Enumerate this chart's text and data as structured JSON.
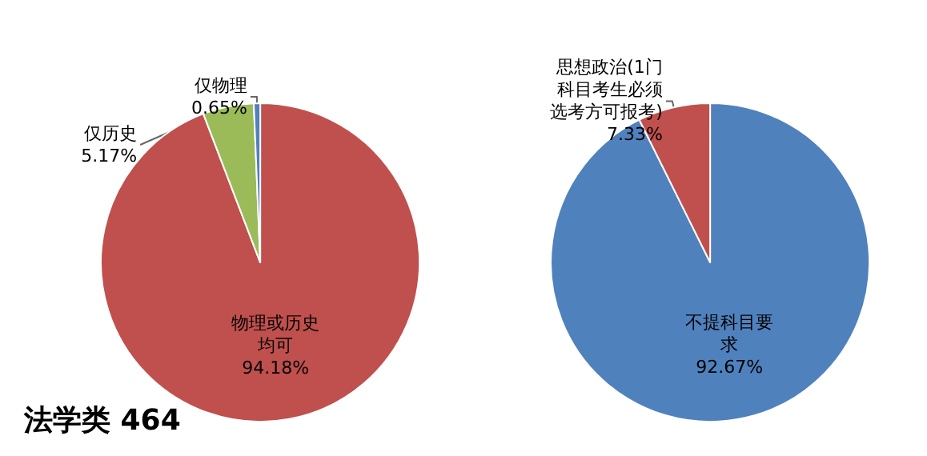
{
  "chart_data": [
    {
      "type": "pie",
      "title": "法学类 464",
      "categories": [
        "物理或历史均可",
        "仅历史",
        "仅物理"
      ],
      "values": [
        94.18,
        5.17,
        0.65
      ],
      "value_labels": [
        "94.18%",
        "5.17%",
        "0.65%"
      ],
      "colors": [
        "#c0504d",
        "#9bbb59",
        "#4f81bd"
      ],
      "legend": false
    },
    {
      "type": "pie",
      "categories": [
        "不提科目要求",
        "思想政治(1门科目考生必须选考方可报考)"
      ],
      "values": [
        92.67,
        7.33
      ],
      "value_labels": [
        "92.67%",
        "7.33%"
      ],
      "colors": [
        "#4f81bd",
        "#c0504d"
      ],
      "legend": false
    }
  ]
}
